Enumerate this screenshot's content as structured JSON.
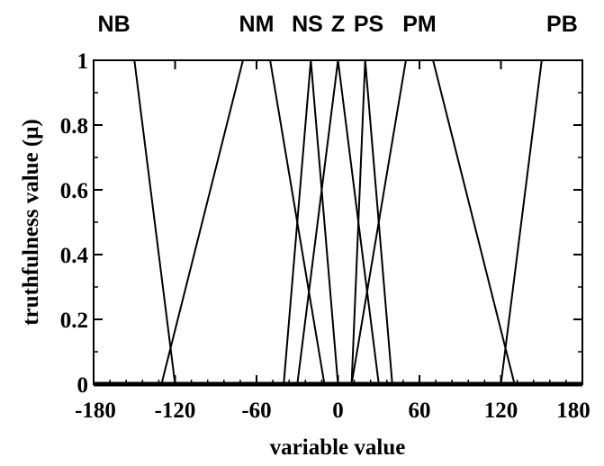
{
  "chart_data": {
    "type": "line",
    "xlabel": "variable value",
    "ylabel": "truthfulness value (μ)",
    "xlim": [
      -180,
      180
    ],
    "ylim": [
      0,
      1
    ],
    "xticks": [
      -180,
      -120,
      -60,
      0,
      60,
      120,
      180
    ],
    "yticks": [
      0,
      0.2,
      0.4,
      0.6,
      0.8,
      1
    ],
    "xtick_labels": [
      "-180",
      "-120",
      "-60",
      "0",
      "60",
      "120",
      "180"
    ],
    "ytick_labels": [
      "0",
      "0.2",
      "0.4",
      "0.6",
      "0.8",
      "1"
    ],
    "grid": false,
    "series": [
      {
        "name": "NB",
        "x": [
          -180,
          -150,
          -120
        ],
        "y": [
          1,
          1,
          0
        ]
      },
      {
        "name": "NM",
        "x": [
          -130,
          -70,
          -50,
          -10
        ],
        "y": [
          0,
          1,
          1,
          0
        ]
      },
      {
        "name": "NS",
        "x": [
          -40,
          -20,
          0
        ],
        "y": [
          0,
          1,
          0
        ]
      },
      {
        "name": "Z",
        "x": [
          -30,
          0,
          30
        ],
        "y": [
          0,
          1,
          0
        ]
      },
      {
        "name": "PS",
        "x": [
          10,
          20,
          40
        ],
        "y": [
          0,
          1,
          0
        ]
      },
      {
        "name": "PM",
        "x": [
          10,
          50,
          70,
          130
        ],
        "y": [
          0,
          1,
          1,
          0
        ]
      },
      {
        "name": "PB",
        "x": [
          120,
          150,
          180
        ],
        "y": [
          0,
          1,
          1
        ]
      }
    ]
  }
}
